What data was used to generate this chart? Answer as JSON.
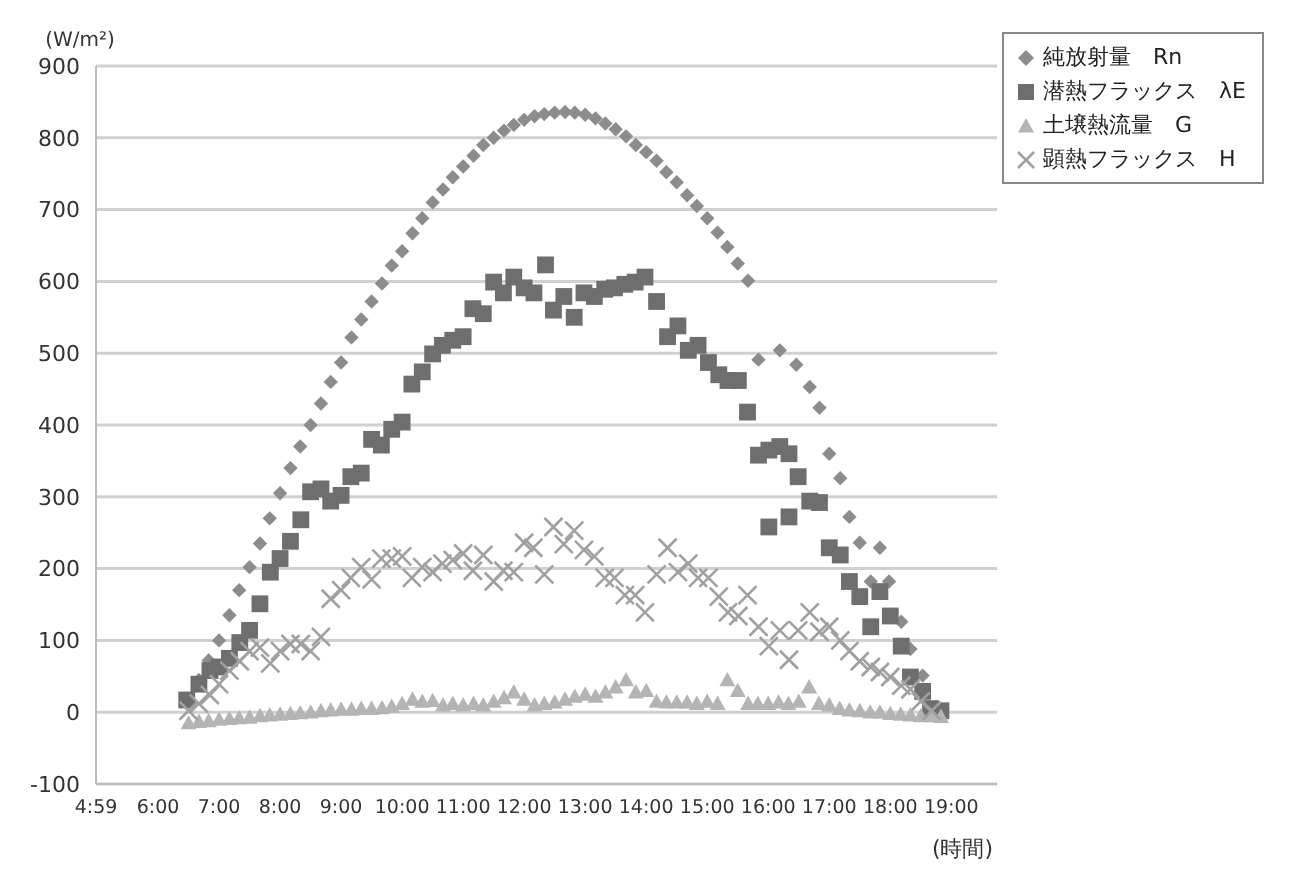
{
  "chart_data": {
    "type": "scatter",
    "ylabel": "(W/m²)",
    "xlabel": "(時間)",
    "xlim": [
      4.9833,
      19.75
    ],
    "xticks": [
      {
        "value": 4.9833,
        "label": "4:59"
      },
      {
        "value": 6,
        "label": "6:00"
      },
      {
        "value": 7,
        "label": "7:00"
      },
      {
        "value": 8,
        "label": "8:00"
      },
      {
        "value": 9,
        "label": "9:00"
      },
      {
        "value": 10,
        "label": "10:00"
      },
      {
        "value": 11,
        "label": "11:00"
      },
      {
        "value": 12,
        "label": "12:00"
      },
      {
        "value": 13,
        "label": "13:00"
      },
      {
        "value": 14,
        "label": "14:00"
      },
      {
        "value": 15,
        "label": "15:00"
      },
      {
        "value": 16,
        "label": "16:00"
      },
      {
        "value": 17,
        "label": "17:00"
      },
      {
        "value": 18,
        "label": "18:00"
      },
      {
        "value": 19,
        "label": "19:00"
      }
    ],
    "ylim": [
      -100,
      900
    ],
    "yticks": [
      -100,
      0,
      100,
      200,
      300,
      400,
      500,
      600,
      700,
      800,
      900
    ],
    "grid": "y",
    "legend": "top right",
    "series": [
      {
        "name": "純放射量　Rn",
        "color": "#8c8c8c",
        "marker": "diamond",
        "x": [
          6.67,
          6.83,
          7,
          7.17,
          7.33,
          7.5,
          7.67,
          7.83,
          8,
          8.17,
          8.33,
          8.5,
          8.67,
          8.83,
          9,
          9.17,
          9.33,
          9.5,
          9.67,
          9.83,
          10,
          10.17,
          10.33,
          10.5,
          10.67,
          10.83,
          11,
          11.17,
          11.33,
          11.5,
          11.67,
          11.83,
          12,
          12.17,
          12.33,
          12.5,
          12.67,
          12.83,
          13,
          13.17,
          13.33,
          13.5,
          13.67,
          13.83,
          14,
          14.17,
          14.33,
          14.5,
          14.67,
          14.83,
          15,
          15.17,
          15.33,
          15.5,
          15.67,
          15.84,
          16.19,
          16.46,
          16.68,
          16.84,
          17,
          17.18,
          17.33,
          17.5,
          17.68,
          17.83,
          17.98,
          18.18,
          18.33,
          18.53
        ],
        "values": [
          45,
          72,
          100,
          135,
          170,
          202,
          235,
          270,
          305,
          340,
          370,
          400,
          430,
          460,
          487,
          522,
          547,
          572,
          597,
          622,
          642,
          667,
          688,
          710,
          728,
          745,
          760,
          775,
          790,
          800,
          810,
          818,
          825,
          830,
          833,
          835,
          836,
          835,
          832,
          827,
          820,
          812,
          802,
          790,
          780,
          768,
          752,
          738,
          720,
          705,
          688,
          668,
          648,
          625,
          601,
          491,
          504,
          484,
          453,
          424,
          360,
          326,
          272,
          236,
          182,
          229,
          182,
          126,
          88,
          51
        ]
      },
      {
        "name": "潜熱フラックス　λE",
        "color": "#6e6e6e",
        "marker": "square",
        "x": [
          6.47,
          6.67,
          6.85,
          7,
          7.17,
          7.34,
          7.5,
          7.67,
          7.84,
          8,
          8.17,
          8.34,
          8.5,
          8.67,
          8.83,
          9,
          9.16,
          9.33,
          9.5,
          9.66,
          9.83,
          10,
          10.16,
          10.33,
          10.5,
          10.66,
          10.83,
          11,
          11.16,
          11.33,
          11.5,
          11.66,
          11.83,
          12,
          12.16,
          12.35,
          12.48,
          12.65,
          12.82,
          12.98,
          13.15,
          13.32,
          13.48,
          13.65,
          13.82,
          13.98,
          14.17,
          14.35,
          14.52,
          14.69,
          14.85,
          15.02,
          15.19,
          15.34,
          15.51,
          15.66,
          15.84,
          16.01,
          16.19,
          16.34,
          16.49,
          16.01,
          16.34,
          16.68,
          16.84,
          17,
          17.18,
          17.33,
          17.5,
          17.68,
          17.83,
          18,
          18.18,
          18.33,
          18.53,
          18.66,
          18.83
        ],
        "values": [
          17,
          39,
          58,
          63,
          75,
          97,
          114,
          151,
          195,
          214,
          238,
          268,
          307,
          311,
          294,
          302,
          328,
          333,
          380,
          372,
          394,
          404,
          457,
          474,
          499,
          511,
          518,
          523,
          562,
          555,
          599,
          584,
          606,
          591,
          584,
          623,
          560,
          579,
          550,
          584,
          579,
          589,
          591,
          596,
          599,
          606,
          572,
          523,
          538,
          504,
          511,
          487,
          470,
          462,
          462,
          418,
          358,
          365,
          370,
          360,
          328,
          258,
          272,
          294,
          292,
          229,
          219,
          182,
          161,
          119,
          168,
          134,
          92,
          49,
          29,
          5,
          2
        ]
      },
      {
        "name": "土壌熱流量　G",
        "color": "#b4b4b4",
        "marker": "triangle",
        "x": [
          6.5,
          6.67,
          6.83,
          7,
          7.17,
          7.33,
          7.5,
          7.67,
          7.83,
          8,
          8.17,
          8.33,
          8.5,
          8.67,
          8.83,
          9,
          9.17,
          9.33,
          9.5,
          9.67,
          9.83,
          10,
          10.17,
          10.33,
          10.5,
          10.67,
          10.83,
          11,
          11.17,
          11.33,
          11.5,
          11.67,
          11.83,
          12,
          12.17,
          12.33,
          12.5,
          12.67,
          12.83,
          13,
          13.17,
          13.33,
          13.5,
          13.67,
          13.83,
          14,
          14.17,
          14.33,
          14.5,
          14.67,
          14.83,
          15,
          15.17,
          15.33,
          15.5,
          15.67,
          15.83,
          16,
          16.17,
          16.33,
          16.5,
          16.67,
          16.83,
          17,
          17.17,
          17.33,
          17.5,
          17.67,
          17.83,
          18,
          18.17,
          18.33,
          18.5,
          18.67,
          18.83
        ],
        "values": [
          -15,
          -13,
          -12,
          -10,
          -9,
          -8,
          -7,
          -5,
          -4,
          -3,
          -2,
          -1,
          0,
          2,
          3,
          4,
          4,
          5,
          5,
          6,
          8,
          12,
          18,
          15,
          16,
          10,
          12,
          10,
          12,
          10,
          15,
          20,
          28,
          18,
          10,
          12,
          14,
          18,
          22,
          25,
          22,
          28,
          35,
          45,
          28,
          30,
          15,
          14,
          14,
          14,
          12,
          15,
          12,
          45,
          30,
          12,
          12,
          12,
          14,
          12,
          15,
          35,
          12,
          10,
          5,
          3,
          2,
          0,
          0,
          -2,
          -3,
          -4,
          -5,
          -5,
          -6
        ]
      },
      {
        "name": "顕熱フラックス　H",
        "color": "#a0a0a0",
        "marker": "cross",
        "x": [
          6.5,
          6.67,
          6.85,
          7,
          7.17,
          7.34,
          7.5,
          7.67,
          7.84,
          8,
          8.17,
          8.34,
          8.5,
          8.67,
          8.83,
          9,
          9.16,
          9.33,
          9.5,
          9.66,
          9.83,
          10,
          10.16,
          10.33,
          10.5,
          10.66,
          10.83,
          11,
          11.16,
          11.33,
          11.5,
          11.66,
          11.83,
          12,
          12.15,
          12.33,
          12.48,
          12.65,
          12.82,
          12.98,
          13.15,
          13.32,
          13.48,
          13.65,
          13.82,
          13.98,
          14.17,
          14.35,
          14.52,
          14.69,
          14.85,
          15.02,
          15.19,
          15.34,
          15.51,
          15.66,
          15.84,
          16.01,
          16.19,
          16.34,
          16.49,
          16.68,
          16.84,
          17,
          17.18,
          17.33,
          17.5,
          17.68,
          17.83,
          18,
          18.18,
          18.33,
          18.5,
          18.68
        ],
        "values": [
          2,
          12,
          24,
          39,
          58,
          71,
          85,
          90,
          68,
          85,
          95,
          95,
          85,
          105,
          158,
          170,
          187,
          202,
          185,
          214,
          214,
          217,
          187,
          202,
          195,
          207,
          212,
          221,
          197,
          219,
          182,
          197,
          195,
          236,
          229,
          192,
          258,
          234,
          253,
          226,
          217,
          187,
          187,
          163,
          163,
          139,
          192,
          229,
          195,
          207,
          187,
          187,
          161,
          139,
          134,
          163,
          119,
          92,
          114,
          73,
          114,
          139,
          112,
          119,
          100,
          85,
          71,
          63,
          56,
          49,
          37,
          32,
          15,
          2
        ]
      }
    ]
  }
}
